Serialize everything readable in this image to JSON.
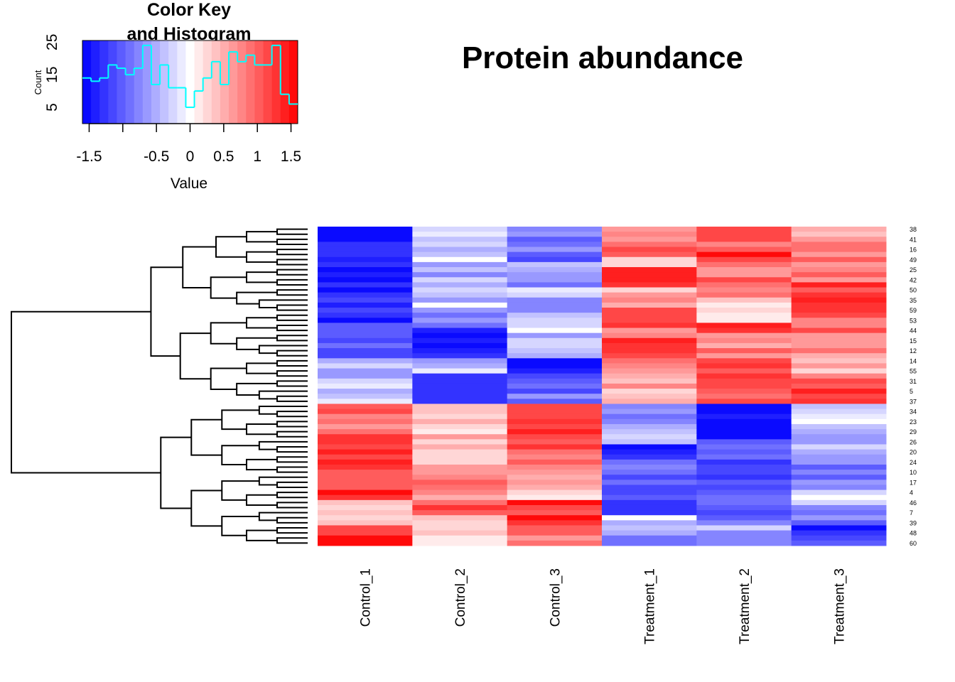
{
  "chart_data": [
    {
      "type": "heatmap",
      "title": "Protein abundance",
      "columns": [
        "Control_1",
        "Control_2",
        "Control_3",
        "Treatment_1",
        "Treatment_2",
        "Treatment_3"
      ],
      "rows": [
        "38",
        null,
        "41",
        null,
        "16",
        null,
        "49",
        null,
        "25",
        null,
        "42",
        null,
        "50",
        null,
        "35",
        null,
        "59",
        null,
        "53",
        null,
        "44",
        null,
        "15",
        null,
        "12",
        null,
        "14",
        null,
        "55",
        null,
        "31",
        null,
        "5",
        null,
        "37",
        null,
        "34",
        null,
        "23",
        null,
        "29",
        null,
        "26",
        null,
        "20",
        null,
        "24",
        null,
        "10",
        null,
        "17",
        null,
        "4",
        null,
        "46",
        null,
        "7",
        null,
        "39",
        null,
        "48",
        null,
        "60"
      ],
      "values": [
        [
          -1.5,
          -0.2,
          -0.8,
          0.7,
          1.1,
          0.5
        ],
        [
          -1.5,
          -0.1,
          -0.7,
          0.8,
          1.1,
          0.4
        ],
        [
          -1.5,
          -0.4,
          -1.0,
          0.7,
          1.1,
          0.6
        ],
        [
          -1.3,
          -0.3,
          -0.9,
          0.9,
          0.8,
          0.9
        ],
        [
          -1.3,
          -0.5,
          -0.6,
          1.2,
          1.0,
          0.9
        ],
        [
          -1.3,
          -0.4,
          -1.0,
          1.0,
          1.5,
          0.7
        ],
        [
          -1.4,
          0.0,
          -1.1,
          0.3,
          1.2,
          1.0
        ],
        [
          -1.3,
          -0.6,
          -0.4,
          0.2,
          0.9,
          0.6
        ],
        [
          -1.5,
          -0.4,
          -0.5,
          1.4,
          0.7,
          0.8
        ],
        [
          -1.4,
          -0.8,
          -0.7,
          1.4,
          0.6,
          1.0
        ],
        [
          -1.5,
          -0.3,
          -0.6,
          1.4,
          1.1,
          0.7
        ],
        [
          -1.3,
          -0.5,
          -0.9,
          1.3,
          0.9,
          1.4
        ],
        [
          -1.5,
          -0.2,
          -0.1,
          0.3,
          0.8,
          1.0
        ],
        [
          -1.3,
          -0.4,
          -0.3,
          0.7,
          0.9,
          1.3
        ],
        [
          -1.1,
          -0.6,
          -0.8,
          0.8,
          0.4,
          1.4
        ],
        [
          -1.4,
          0.0,
          -0.8,
          0.5,
          0.1,
          1.3
        ],
        [
          -1.2,
          -0.7,
          -0.8,
          1.2,
          0.2,
          1.3
        ],
        [
          -1.3,
          -0.9,
          -0.4,
          1.2,
          0.1,
          1.2
        ],
        [
          -1.5,
          -0.7,
          -0.3,
          1.1,
          0.1,
          0.8
        ],
        [
          -1.0,
          -0.9,
          -0.2,
          1.3,
          1.4,
          0.8
        ],
        [
          -1.0,
          -1.4,
          0.0,
          0.7,
          1.3,
          1.1
        ],
        [
          -1.0,
          -1.5,
          -0.6,
          0.8,
          0.6,
          0.6
        ],
        [
          -1.2,
          -1.4,
          -0.3,
          1.4,
          0.8,
          0.7
        ],
        [
          -0.9,
          -1.5,
          -0.3,
          1.3,
          0.5,
          0.6
        ],
        [
          -1.1,
          -1.4,
          -0.4,
          1.3,
          1.0,
          0.9
        ],
        [
          -1.2,
          -1.3,
          -0.5,
          1.1,
          0.6,
          0.5
        ],
        [
          -0.5,
          -0.7,
          -1.5,
          0.9,
          1.2,
          0.4
        ],
        [
          -0.3,
          -0.5,
          -1.5,
          0.8,
          1.3,
          0.6
        ],
        [
          -0.6,
          -0.1,
          -1.4,
          0.6,
          1.0,
          0.3
        ],
        [
          -0.7,
          -1.3,
          -1.2,
          0.5,
          1.3,
          0.8
        ],
        [
          -0.2,
          -1.3,
          -1.0,
          0.4,
          1.2,
          1.1
        ],
        [
          -0.1,
          -1.3,
          -0.9,
          0.8,
          1.1,
          1.0
        ],
        [
          -0.5,
          -1.3,
          -1.2,
          0.3,
          1.0,
          1.4
        ],
        [
          -0.4,
          -1.3,
          -0.7,
          0.4,
          0.9,
          1.2
        ],
        [
          -0.1,
          -1.3,
          -1.0,
          0.5,
          1.1,
          1.3
        ],
        [
          1.0,
          0.4,
          1.1,
          -0.8,
          -1.5,
          -0.4
        ],
        [
          1.1,
          0.4,
          1.2,
          -0.6,
          -1.5,
          -0.3
        ],
        [
          0.8,
          0.2,
          1.2,
          -0.9,
          -1.4,
          -0.1
        ],
        [
          0.9,
          0.5,
          1.3,
          -0.8,
          -1.5,
          0.0
        ],
        [
          0.6,
          0.3,
          1.2,
          -0.5,
          -1.5,
          -0.4
        ],
        [
          0.9,
          0.1,
          1.4,
          -0.4,
          -1.5,
          -0.5
        ],
        [
          1.3,
          0.6,
          1.2,
          -0.3,
          -1.5,
          -0.7
        ],
        [
          1.3,
          0.2,
          1.0,
          -0.4,
          -1.0,
          -0.6
        ],
        [
          1.2,
          0.5,
          1.3,
          -1.5,
          -0.9,
          -0.2
        ],
        [
          1.4,
          0.3,
          0.9,
          -1.4,
          -1.0,
          -0.5
        ],
        [
          1.2,
          0.3,
          0.8,
          -1.3,
          -0.9,
          -0.7
        ],
        [
          1.4,
          0.3,
          1.0,
          -0.9,
          -1.3,
          -0.6
        ],
        [
          1.3,
          0.6,
          0.8,
          -0.8,
          -1.1,
          -1.0
        ],
        [
          1.0,
          0.7,
          0.6,
          -0.9,
          -1.2,
          -0.8
        ],
        [
          1.0,
          0.8,
          0.5,
          -1.1,
          -1.3,
          -1.0
        ],
        [
          1.0,
          1.0,
          0.6,
          -0.9,
          -1.0,
          -0.6
        ],
        [
          1.0,
          0.9,
          0.5,
          -1.1,
          -1.2,
          -0.8
        ],
        [
          1.5,
          0.8,
          0.3,
          -1.1,
          -1.0,
          -0.2
        ],
        [
          1.3,
          0.5,
          0.1,
          -1.0,
          -0.9,
          0.0
        ],
        [
          0.4,
          0.9,
          1.5,
          -1.3,
          -0.9,
          -0.3
        ],
        [
          0.3,
          1.3,
          1.2,
          -1.3,
          -1.0,
          -0.8
        ],
        [
          0.4,
          1.0,
          1.0,
          -1.3,
          -1.2,
          -0.9
        ],
        [
          0.3,
          0.4,
          1.5,
          0.0,
          -1.0,
          -0.7
        ],
        [
          0.4,
          0.2,
          1.3,
          -0.5,
          -0.8,
          -1.0
        ],
        [
          1.2,
          0.3,
          1.0,
          -0.4,
          -0.3,
          -1.5
        ],
        [
          1.1,
          0.4,
          1.0,
          -0.5,
          -0.8,
          -1.3
        ],
        [
          1.5,
          0.1,
          0.7,
          -0.9,
          -0.8,
          -1.1
        ],
        [
          1.5,
          0.1,
          0.9,
          -0.9,
          -0.8,
          -1.0
        ]
      ],
      "colormap": [
        "#0000ff",
        "#ffffff",
        "#ff0000"
      ]
    },
    {
      "type": "histogram",
      "title": [
        "Color Key",
        "and Histogram"
      ],
      "xlabel": "Value",
      "ylabel": "Count",
      "bins": [
        -1.6,
        -1.472,
        -1.344,
        -1.216,
        -1.088,
        -0.96,
        -0.832,
        -0.704,
        -0.576,
        -0.448,
        -0.32,
        -0.192,
        -0.064,
        0.064,
        0.192,
        0.32,
        0.448,
        0.576,
        0.704,
        0.832,
        0.96,
        1.088,
        1.216,
        1.344,
        1.472,
        1.6
      ],
      "values": [
        14,
        13,
        14,
        18,
        17,
        15,
        17,
        24,
        12,
        18,
        11,
        11,
        5,
        10,
        14,
        19,
        12,
        22,
        19,
        21,
        18,
        18,
        24,
        9,
        6
      ],
      "color": "#00ffff",
      "xlim": [
        -1.6,
        1.6
      ],
      "xticks": [
        -1.5,
        {
          "value": -1,
          "label": null
        },
        -0.5,
        0,
        0.5,
        1,
        1.5
      ],
      "ylim": [
        0,
        25.5
      ],
      "yticks": [
        5,
        15,
        25
      ]
    }
  ]
}
